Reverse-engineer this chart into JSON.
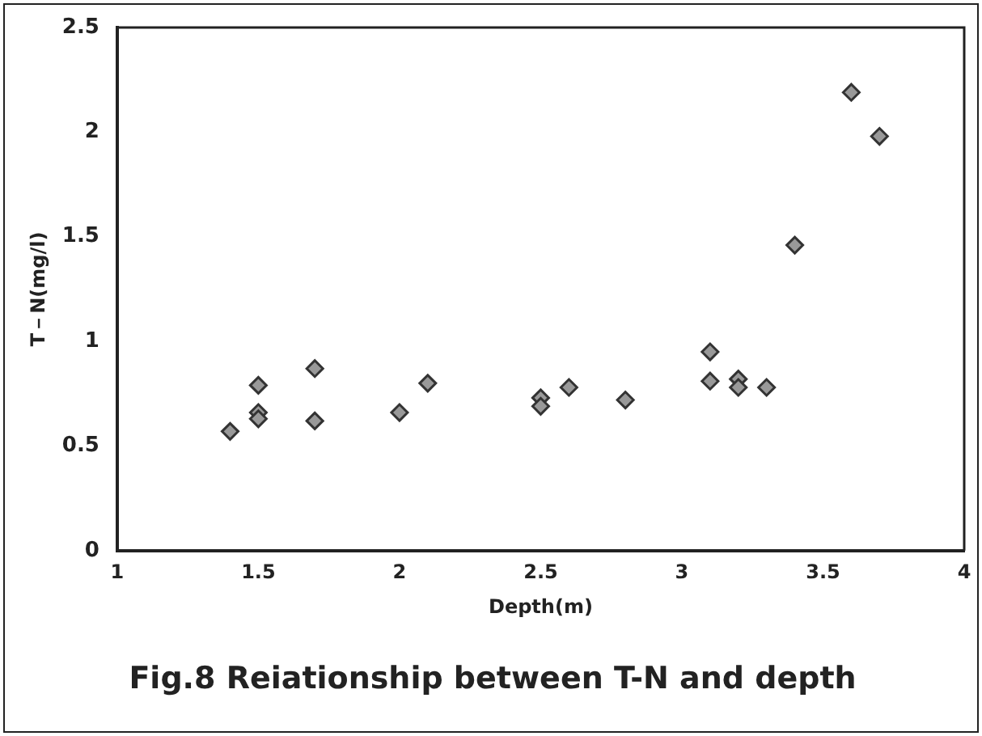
{
  "chart_data": {
    "type": "scatter",
    "title": "Fig.8 Reiationship between T-N and depth",
    "xlabel": "Depth(m)",
    "ylabel": "T－N(mg/l)",
    "x": [
      1.4,
      1.5,
      1.5,
      1.5,
      1.7,
      1.7,
      2.0,
      2.1,
      2.5,
      2.5,
      2.6,
      2.8,
      3.1,
      3.1,
      3.2,
      3.2,
      3.3,
      3.4,
      3.6,
      3.7
    ],
    "series": [
      {
        "color": "#999999",
        "values": [
          0.57,
          0.79,
          0.66,
          0.63,
          0.87,
          0.62,
          0.66,
          0.8,
          0.73,
          0.69,
          0.78,
          0.72,
          0.95,
          0.81,
          0.82,
          0.78,
          0.78,
          1.46,
          2.19,
          1.98
        ]
      }
    ],
    "xlim": [
      1,
      4
    ],
    "xticks": [
      1,
      1.5,
      2,
      2.5,
      3,
      3.5,
      4
    ],
    "ylim": [
      0,
      2.5
    ],
    "yticks": [
      0,
      0.5,
      1,
      1.5,
      2,
      2.5
    ],
    "grid": false,
    "legend": false,
    "marker": "diamond"
  }
}
